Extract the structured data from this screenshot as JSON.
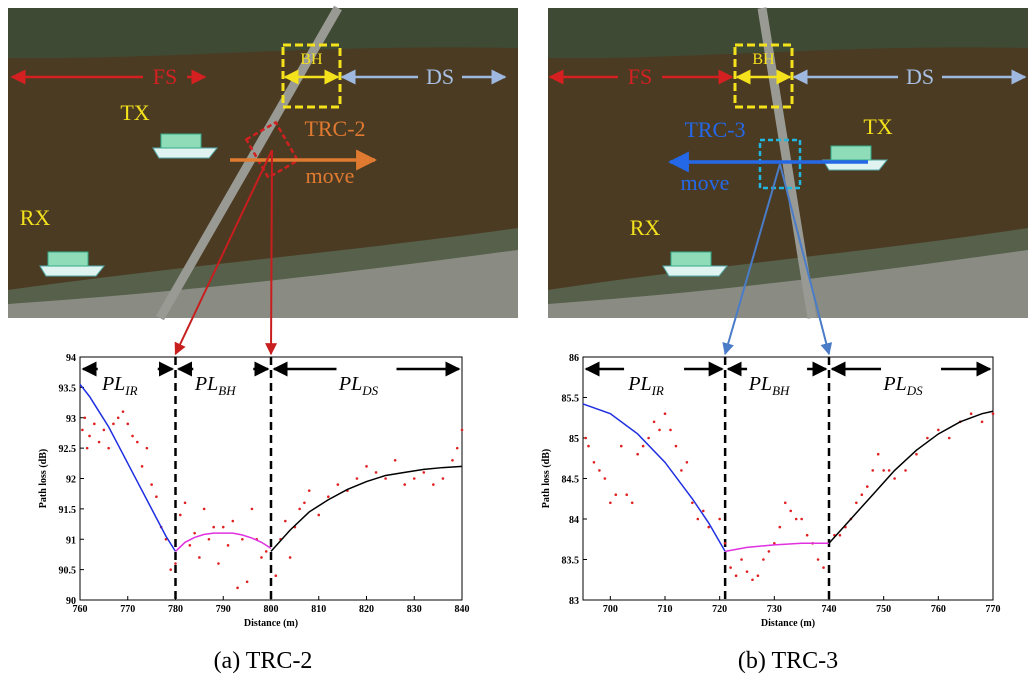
{
  "chart_data": [
    {
      "type": "line",
      "caption": "(a) TRC-2",
      "xlabel": "Distance (m)",
      "ylabel": "Path loss (dB)",
      "xlim": [
        760,
        840
      ],
      "xticks": [
        760,
        770,
        780,
        790,
        800,
        810,
        820,
        830,
        840
      ],
      "ylim": [
        90,
        94
      ],
      "yticks": [
        90,
        90.5,
        91,
        91.5,
        92,
        92.5,
        93,
        93.5,
        94
      ],
      "boundaries": [
        780,
        800
      ],
      "segments": [
        {
          "text": "PL",
          "sub": "IR"
        },
        {
          "text": "PL",
          "sub": "BH"
        },
        {
          "text": "PL",
          "sub": "DS"
        }
      ],
      "fits": [
        {
          "color": "#1f2fe0",
          "x": [
            760,
            762,
            764,
            766,
            768,
            770,
            772,
            774,
            776,
            778,
            780
          ],
          "values": [
            93.55,
            93.35,
            93.1,
            92.85,
            92.55,
            92.25,
            91.95,
            91.65,
            91.35,
            91.05,
            90.8
          ]
        },
        {
          "color": "#e030e0",
          "x": [
            780,
            782,
            784,
            786,
            788,
            790,
            792,
            794,
            796,
            798,
            800
          ],
          "values": [
            90.8,
            90.95,
            91.03,
            91.08,
            91.1,
            91.1,
            91.1,
            91.07,
            91.02,
            90.95,
            90.85
          ]
        },
        {
          "color": "#000000",
          "x": [
            800,
            804,
            808,
            812,
            816,
            820,
            824,
            828,
            832,
            836,
            840
          ],
          "values": [
            90.8,
            91.15,
            91.45,
            91.65,
            91.82,
            91.95,
            92.05,
            92.1,
            92.15,
            92.18,
            92.2
          ]
        }
      ],
      "scatter": {
        "color": "#e02020",
        "x": [
          760.5,
          761,
          761.5,
          762,
          763,
          764,
          765,
          766,
          767,
          768,
          769,
          770,
          771,
          772,
          773,
          774,
          775,
          776,
          777,
          778,
          779,
          780,
          781,
          782,
          783,
          784,
          785,
          786,
          787,
          788,
          789,
          790,
          791,
          792,
          793,
          794,
          795,
          796,
          797,
          798,
          799,
          801,
          802,
          803,
          804,
          805,
          806,
          807,
          808,
          810,
          812,
          814,
          816,
          818,
          820,
          822,
          824,
          826,
          828,
          830,
          832,
          834,
          836,
          838,
          839,
          840
        ],
        "values": [
          92.8,
          93.0,
          92.5,
          92.7,
          92.9,
          92.6,
          92.8,
          92.5,
          92.9,
          93.0,
          93.1,
          92.9,
          92.7,
          92.6,
          92.2,
          92.5,
          91.9,
          91.7,
          91.2,
          91.0,
          90.5,
          90.6,
          91.4,
          91.6,
          90.9,
          91.1,
          90.7,
          91.5,
          91.0,
          91.2,
          90.6,
          91.2,
          90.9,
          91.3,
          90.2,
          91.0,
          90.3,
          91.5,
          91.0,
          90.7,
          90.8,
          90.4,
          91.0,
          91.3,
          90.7,
          91.2,
          91.5,
          91.6,
          91.8,
          91.4,
          91.7,
          91.9,
          91.8,
          92.0,
          92.2,
          92.1,
          92.0,
          92.3,
          91.9,
          92.0,
          92.1,
          91.9,
          92.0,
          92.3,
          92.5,
          92.8
        ]
      },
      "map": {
        "fs": "FS",
        "bh": "BH",
        "ds": "DS",
        "tx": "TX",
        "rx": "RX",
        "trc": "TRC-2",
        "move": "move"
      }
    },
    {
      "type": "line",
      "caption": "(b) TRC-3",
      "xlabel": "Distance (m)",
      "ylabel": "Path loss (dB)",
      "xlim": [
        695,
        770
      ],
      "xticks": [
        700,
        710,
        720,
        730,
        740,
        750,
        760,
        770
      ],
      "ylim": [
        83,
        86
      ],
      "yticks": [
        83,
        83.5,
        84,
        84.5,
        85,
        85.5,
        86
      ],
      "boundaries": [
        721,
        740
      ],
      "segments": [
        {
          "text": "PL",
          "sub": "IR"
        },
        {
          "text": "PL",
          "sub": "BH"
        },
        {
          "text": "PL",
          "sub": "DS"
        }
      ],
      "fits": [
        {
          "color": "#1f2fe0",
          "x": [
            695,
            700,
            705,
            710,
            715,
            718,
            721
          ],
          "values": [
            85.42,
            85.3,
            85.05,
            84.7,
            84.25,
            83.95,
            83.6
          ]
        },
        {
          "color": "#e030e0",
          "x": [
            721,
            725,
            730,
            735,
            740
          ],
          "values": [
            83.6,
            83.65,
            83.68,
            83.7,
            83.7
          ]
        },
        {
          "color": "#000000",
          "x": [
            740,
            744,
            748,
            752,
            756,
            760,
            764,
            768,
            770
          ],
          "values": [
            83.7,
            84.0,
            84.3,
            84.6,
            84.85,
            85.05,
            85.2,
            85.3,
            85.33
          ]
        }
      ],
      "scatter": {
        "color": "#e02020",
        "x": [
          695.5,
          696,
          697,
          698,
          699,
          700,
          701,
          702,
          703,
          704,
          705,
          706,
          707,
          708,
          709,
          710,
          711,
          712,
          713,
          714,
          715,
          716,
          717,
          718,
          720,
          721,
          722,
          723,
          724,
          725,
          726,
          727,
          728,
          729,
          730,
          731,
          732,
          733,
          734,
          735,
          736,
          737,
          738,
          739,
          741,
          742,
          743,
          744,
          745,
          746,
          747,
          748,
          749,
          750,
          751,
          752,
          754,
          756,
          758,
          760,
          762,
          764,
          766,
          768,
          770
        ],
        "values": [
          85.0,
          84.9,
          84.7,
          84.6,
          84.5,
          84.2,
          84.3,
          84.9,
          84.3,
          84.2,
          84.8,
          84.9,
          85.0,
          85.2,
          85.1,
          85.3,
          85.1,
          84.9,
          84.6,
          84.7,
          84.2,
          84.0,
          84.1,
          83.9,
          84.0,
          83.7,
          83.4,
          83.3,
          83.5,
          83.35,
          83.25,
          83.3,
          83.5,
          83.6,
          83.7,
          83.9,
          84.2,
          84.1,
          84.0,
          84.0,
          83.8,
          83.7,
          83.5,
          83.4,
          83.8,
          83.8,
          83.9,
          84.0,
          84.2,
          84.3,
          84.4,
          84.6,
          84.8,
          84.6,
          84.6,
          84.5,
          84.6,
          84.8,
          85.0,
          85.1,
          85.0,
          85.2,
          85.3,
          85.2,
          85.3
        ]
      },
      "map": {
        "fs": "FS",
        "bh": "BH",
        "ds": "DS",
        "tx": "TX",
        "rx": "RX",
        "trc": "TRC-3",
        "move": "move"
      }
    }
  ]
}
